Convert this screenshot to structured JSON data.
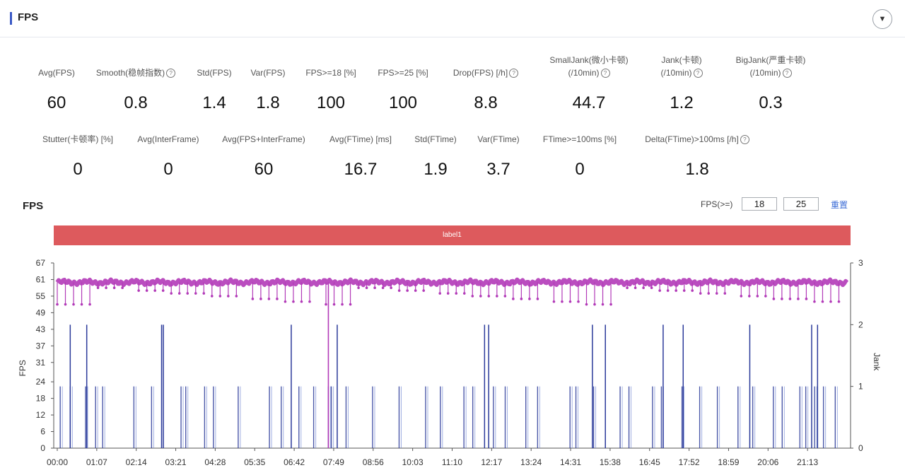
{
  "panel": {
    "title": "FPS",
    "collapse_icon": "chevron-down-icon"
  },
  "metrics_row1": [
    {
      "label": "Avg(FPS)",
      "value": "60",
      "help": false
    },
    {
      "label": "Smooth(稳帧指数)",
      "value": "0.8",
      "help": true
    },
    {
      "label": "Std(FPS)",
      "value": "1.4",
      "help": false
    },
    {
      "label": "Var(FPS)",
      "value": "1.8",
      "help": false
    },
    {
      "label": "FPS>=18 [%]",
      "value": "100",
      "help": false
    },
    {
      "label": "FPS>=25 [%]",
      "value": "100",
      "help": false
    },
    {
      "label": "Drop(FPS) [/h]",
      "value": "8.8",
      "help": true
    },
    {
      "label": "SmallJank(微小卡顿)",
      "label2": "(/10min)",
      "value": "44.7",
      "help": true
    },
    {
      "label": "Jank(卡顿)",
      "label2": "(/10min)",
      "value": "1.2",
      "help": true
    },
    {
      "label": "BigJank(严重卡顿)",
      "label2": "(/10min)",
      "value": "0.3",
      "help": true
    }
  ],
  "metrics_row2": [
    {
      "label": "Stutter(卡顿率) [%]",
      "value": "0",
      "help": false
    },
    {
      "label": "Avg(InterFrame)",
      "value": "0",
      "help": false
    },
    {
      "label": "Avg(FPS+InterFrame)",
      "value": "60",
      "help": false
    },
    {
      "label": "Avg(FTime) [ms]",
      "value": "16.7",
      "help": false
    },
    {
      "label": "Std(FTime)",
      "value": "1.9",
      "help": false
    },
    {
      "label": "Var(FTime)",
      "value": "3.7",
      "help": false
    },
    {
      "label": "FTime>=100ms [%]",
      "value": "0",
      "help": false
    },
    {
      "label": "Delta(FTime)>100ms [/h]",
      "value": "1.8",
      "help": true
    }
  ],
  "chart_header": {
    "title": "FPS",
    "threshold_label": "FPS(>=)",
    "threshold_1": "18",
    "threshold_2": "25",
    "reset_label": "重置"
  },
  "label_band": {
    "text": "label1",
    "color": "#dd5a5d"
  },
  "chart_data": {
    "type": "line",
    "x_ticks": [
      "00:00",
      "01:07",
      "02:14",
      "03:21",
      "04:28",
      "05:35",
      "06:42",
      "07:49",
      "08:56",
      "10:03",
      "11:10",
      "12:17",
      "13:24",
      "14:31",
      "15:38",
      "16:45",
      "17:52",
      "18:59",
      "20:06",
      "21:13"
    ],
    "y_left_ticks": [
      "0",
      "6",
      "12",
      "18",
      "24",
      "31",
      "37",
      "43",
      "49",
      "55",
      "61",
      "67"
    ],
    "y_left_label": "FPS",
    "y_left_range": [
      0,
      67
    ],
    "y_right_ticks": [
      "0",
      "1",
      "2",
      "3"
    ],
    "y_right_label": "Jank",
    "y_right_range": [
      0,
      3
    ],
    "series": [
      {
        "color": "#b23ab8",
        "fps_baseline": 60
      },
      {
        "color": "#2b3a9a",
        "jank_spike_times": [
          "00:05",
          "00:22",
          "00:48",
          "01:05",
          "01:17",
          "02:10",
          "02:40",
          "03:30",
          "03:38",
          "04:10",
          "04:25",
          "05:07",
          "06:00",
          "06:20",
          "06:50",
          "07:15",
          "07:40",
          "07:45",
          "08:10",
          "08:55",
          "09:40",
          "10:25",
          "10:50",
          "11:30",
          "11:45",
          "12:20",
          "12:40",
          "13:15",
          "13:35",
          "14:30",
          "14:40",
          "15:10",
          "15:55",
          "16:10",
          "16:50",
          "17:05",
          "17:40",
          "18:10",
          "18:40",
          "19:15",
          "19:40",
          "20:15",
          "20:30",
          "21:00",
          "21:10",
          "21:25",
          "21:40",
          "22:00"
        ]
      },
      {
        "color": "#2b3a9a",
        "big_jank_times": [
          "00:22",
          "00:50",
          "02:57",
          "03:00",
          "06:37",
          "07:55",
          "12:05",
          "12:12",
          "15:08",
          "15:30",
          "17:08",
          "17:42",
          "19:35",
          "21:20",
          "21:30"
        ]
      }
    ]
  }
}
